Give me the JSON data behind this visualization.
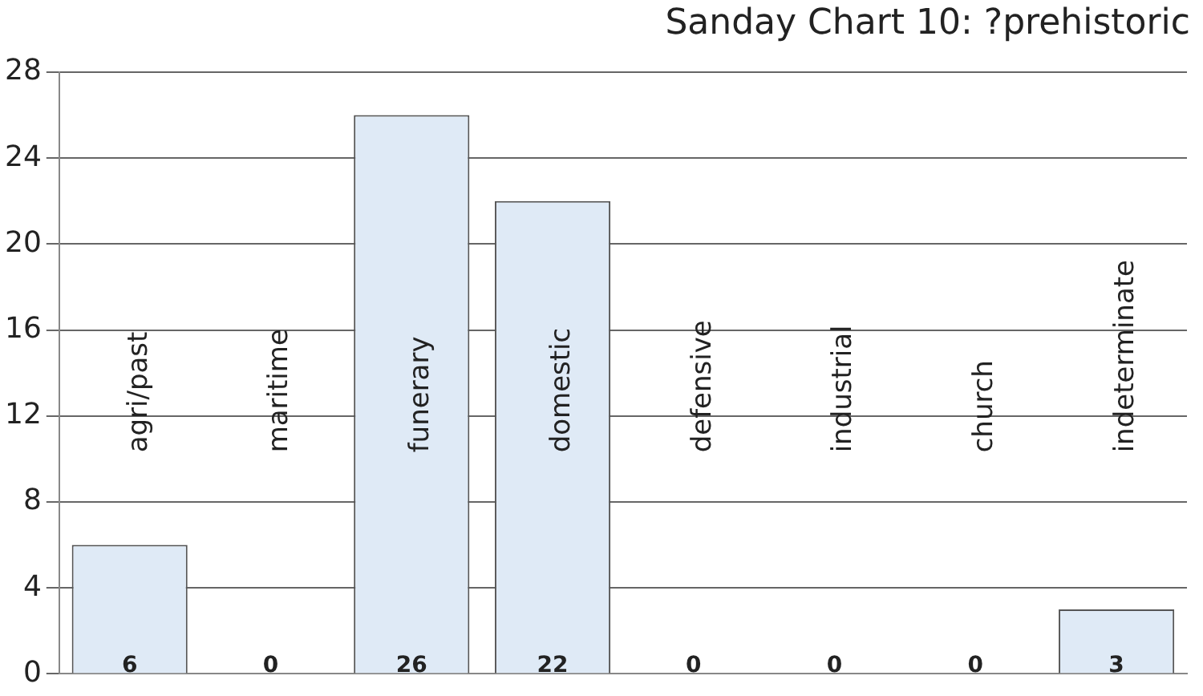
{
  "chart_data": {
    "type": "bar",
    "title": "Sanday Chart 10: ?prehistoric",
    "categories": [
      "agri/past",
      "maritime",
      "funerary",
      "domestic",
      "defensive",
      "industrial",
      "church",
      "indeterminate"
    ],
    "values": [
      6,
      0,
      26,
      22,
      0,
      0,
      0,
      3
    ],
    "color": "#dfeaf6",
    "ylim": [
      0,
      28
    ],
    "yticks": [
      0,
      4,
      8,
      12,
      16,
      20,
      24,
      28
    ],
    "grid": "y",
    "legend": false,
    "data_labels": true
  }
}
